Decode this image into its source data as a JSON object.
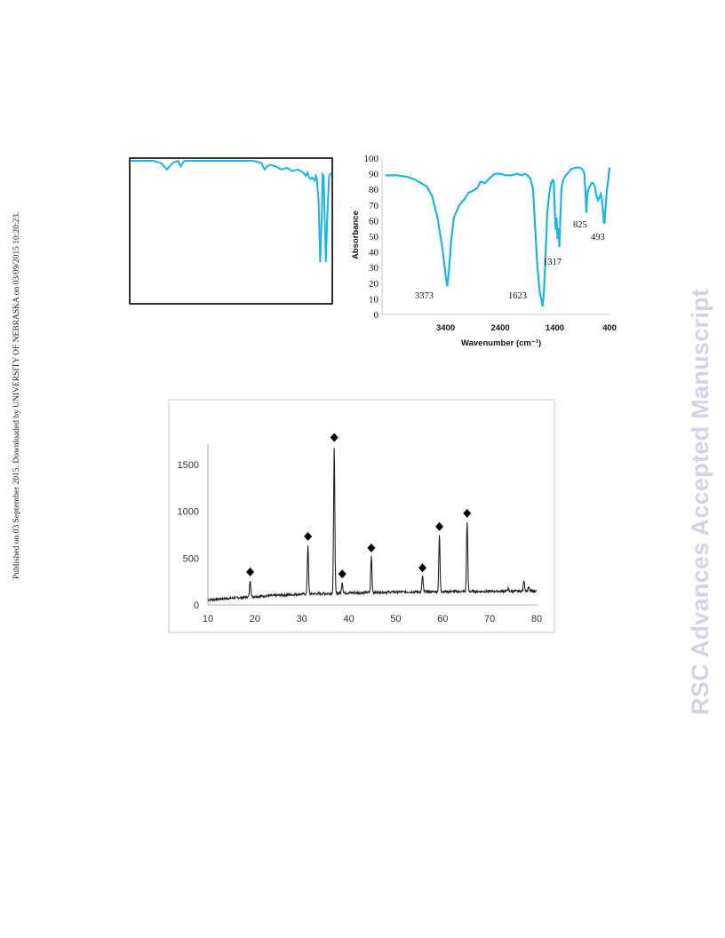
{
  "side_note": "Published on 03 September 2015. Downloaded by UNIVERSITY OF NEBRASKA on 03/09/2015 10:20:23.",
  "watermark": "RSC Advances Accepted Manuscript",
  "colors": {
    "spectrum": "#1ab4e8",
    "xrd_line": "#222222",
    "frame": "#000000",
    "plot_border": "#c8c8c8"
  },
  "chart_data": [
    {
      "type": "line",
      "id": "ir-left",
      "x_reversed": true,
      "xlim": [
        4000,
        400
      ],
      "ylim": [
        0,
        100
      ],
      "x": [
        4000,
        3750,
        3600,
        3450,
        3350,
        3250,
        3150,
        3100,
        3050,
        3000,
        2900,
        2600,
        2200,
        1800,
        1650,
        1600,
        1550,
        1500,
        1400,
        1300,
        1200,
        1100,
        1000,
        900,
        860,
        830,
        800,
        770,
        745,
        720,
        700,
        680,
        660,
        630,
        600,
        570,
        560,
        540,
        520,
        500,
        470,
        440,
        400
      ],
      "y": [
        93,
        94,
        93,
        88,
        84,
        88,
        90,
        86,
        89,
        92,
        93,
        93,
        93,
        92,
        88,
        84,
        86,
        87,
        86,
        84,
        85,
        83,
        84,
        82,
        80,
        82,
        79,
        78,
        79,
        78,
        77,
        80,
        78,
        64,
        26,
        58,
        81,
        80,
        54,
        26,
        58,
        80,
        82
      ]
    },
    {
      "type": "line",
      "id": "ir-right",
      "title": "",
      "xlabel": "Wavenumber (cm⁻¹)",
      "ylabel": "Absorbance",
      "x_reversed": true,
      "xlim": [
        4500,
        400
      ],
      "ylim": [
        0,
        100
      ],
      "xticks": [
        "3400",
        "2400",
        "1400",
        "400"
      ],
      "yticks": [
        "100",
        "90",
        "80",
        "70",
        "60",
        "50",
        "40",
        "30",
        "20",
        "10",
        "0"
      ],
      "annotations": [
        "3373",
        "1623",
        "1317",
        "825",
        "493"
      ],
      "x": [
        4500,
        4300,
        4100,
        3950,
        3850,
        3750,
        3650,
        3550,
        3450,
        3400,
        3373,
        3340,
        3300,
        3250,
        3150,
        3050,
        2980,
        2900,
        2820,
        2760,
        2680,
        2600,
        2500,
        2400,
        2300,
        2200,
        2100,
        2000,
        1950,
        1900,
        1850,
        1800,
        1760,
        1720,
        1680,
        1650,
        1623,
        1600,
        1570,
        1540,
        1500,
        1470,
        1440,
        1420,
        1400,
        1385,
        1370,
        1350,
        1330,
        1317,
        1300,
        1280,
        1250,
        1200,
        1100,
        1000,
        950,
        900,
        860,
        840,
        825,
        810,
        790,
        760,
        730,
        700,
        670,
        640,
        610,
        580,
        560,
        540,
        520,
        505,
        493,
        480,
        460,
        440,
        420,
        400
      ],
      "y": [
        89,
        89,
        88,
        86,
        84,
        82,
        76,
        62,
        40,
        25,
        18,
        28,
        47,
        62,
        70,
        74,
        78,
        79,
        81,
        85,
        84,
        87,
        90,
        90,
        89,
        89,
        90,
        89,
        90,
        89,
        87,
        80,
        55,
        30,
        15,
        10,
        5,
        15,
        38,
        65,
        78,
        84,
        86,
        85,
        65,
        54,
        62,
        48,
        55,
        43,
        62,
        80,
        86,
        89,
        93,
        94,
        94,
        93,
        90,
        78,
        65,
        75,
        80,
        82,
        84,
        84,
        82,
        76,
        73,
        75,
        77,
        74,
        66,
        60,
        58,
        65,
        74,
        82,
        87,
        94
      ]
    },
    {
      "type": "line",
      "id": "xrd",
      "xlim": [
        10,
        80
      ],
      "ylim": [
        0,
        1700
      ],
      "xticks": [
        "10",
        "20",
        "30",
        "40",
        "50",
        "60",
        "70",
        "80"
      ],
      "yticks": [
        "0",
        "500",
        "1000",
        "1500"
      ],
      "peaks": [
        {
          "x": 19.0,
          "height": 180,
          "marker": true
        },
        {
          "x": 31.3,
          "height": 530,
          "marker": true
        },
        {
          "x": 36.9,
          "height": 1580,
          "marker": true
        },
        {
          "x": 38.6,
          "height": 120,
          "marker": true
        },
        {
          "x": 44.8,
          "height": 390,
          "marker": true
        },
        {
          "x": 55.7,
          "height": 170,
          "marker": true
        },
        {
          "x": 59.3,
          "height": 610,
          "marker": true
        },
        {
          "x": 65.2,
          "height": 750,
          "marker": true
        },
        {
          "x": 73.9,
          "height": 30,
          "marker": false
        },
        {
          "x": 77.3,
          "height": 120,
          "marker": false
        },
        {
          "x": 78.3,
          "height": 40,
          "marker": false
        }
      ],
      "baseline": [
        {
          "x": 10,
          "y": 55
        },
        {
          "x": 20,
          "y": 90
        },
        {
          "x": 30,
          "y": 115
        },
        {
          "x": 40,
          "y": 128
        },
        {
          "x": 50,
          "y": 138
        },
        {
          "x": 60,
          "y": 142
        },
        {
          "x": 70,
          "y": 145
        },
        {
          "x": 80,
          "y": 148
        }
      ]
    }
  ]
}
